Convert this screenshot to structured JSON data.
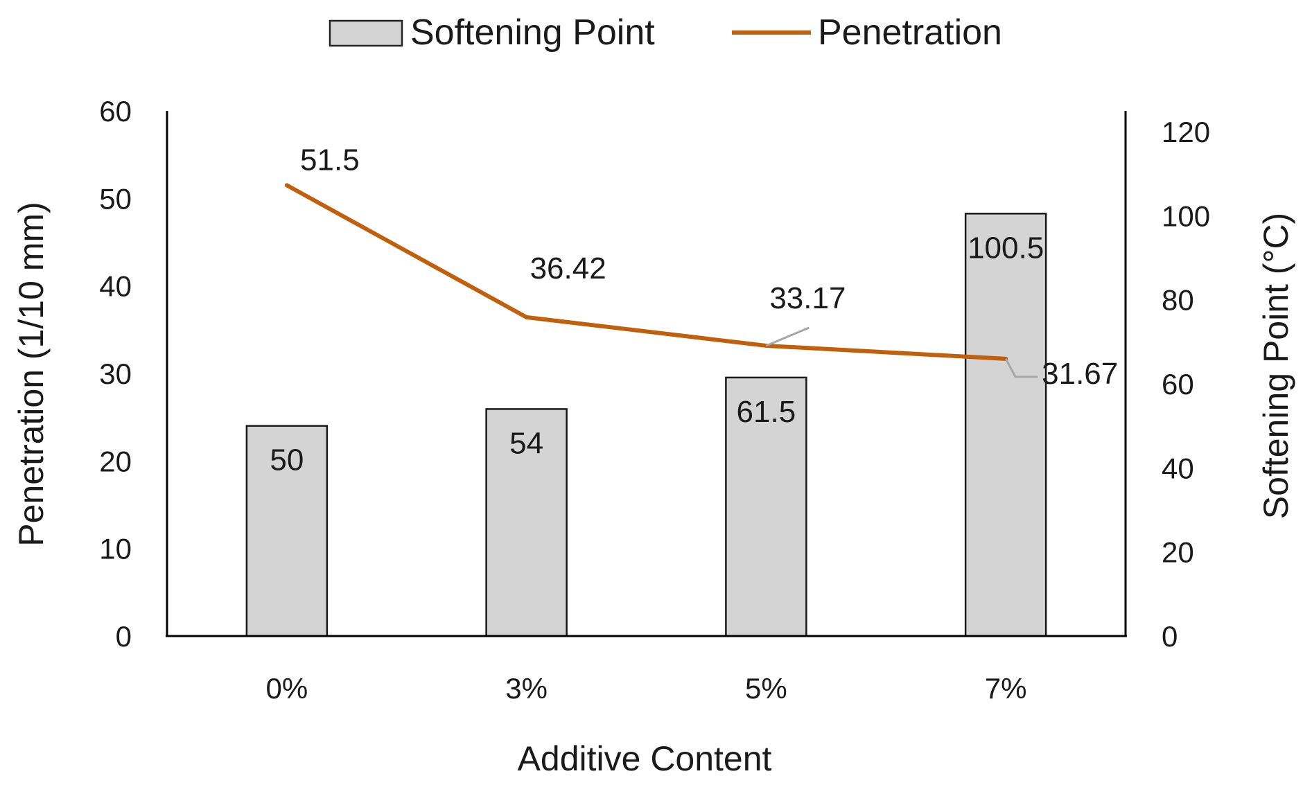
{
  "chart_data": {
    "type": "bar",
    "title": "",
    "xlabel": "Additive Content",
    "ylabel_left": "Penetration (1/10 mm)",
    "ylabel_right": "Softening Point (°C)",
    "categories": [
      "0%",
      "3%",
      "5%",
      "7%"
    ],
    "y_left_lim": [
      0,
      60
    ],
    "y_left_ticks": [
      "0",
      "10",
      "20",
      "30",
      "40",
      "50",
      "60"
    ],
    "y_right_lim": [
      0,
      120
    ],
    "y_right_ticks": [
      "0",
      "20",
      "40",
      "60",
      "80",
      "100",
      "120"
    ],
    "series": [
      {
        "name": "Softening Point",
        "type": "bar",
        "axis": "right",
        "values": [
          50,
          54,
          61.5,
          100.5
        ],
        "labels": [
          "50",
          "54",
          "61.5",
          "100.5"
        ],
        "color": "#d4d4d4"
      },
      {
        "name": "Penetration",
        "type": "line",
        "axis": "left",
        "values": [
          51.5,
          36.42,
          33.17,
          31.67
        ],
        "labels": [
          "51.5",
          "36.42",
          "33.17",
          "31.67"
        ],
        "color": "#c0600d"
      }
    ],
    "grid": false,
    "legend_position": "top"
  }
}
